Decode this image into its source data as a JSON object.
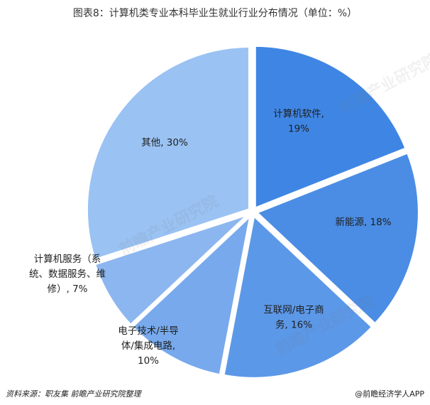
{
  "title": "图表8：计算机类专业本科毕业生就业行业分布情况（单位：%）",
  "source": "资料来源：职友集 前瞻产业研究院整理",
  "brand": "@前瞻经济学人APP",
  "watermark": "前瞻产业研究院",
  "chart_data": {
    "type": "pie",
    "title": "图表8：计算机类专业本科毕业生就业行业分布情况（单位：%）",
    "unit": "%",
    "slices": [
      {
        "label_lines": [
          "计算机软件,",
          "19%"
        ],
        "value": 19,
        "color": "#3f86e4"
      },
      {
        "label_lines": [
          "新能源, 18%"
        ],
        "value": 18,
        "color": "#4b8de4"
      },
      {
        "label_lines": [
          "互联网/电子商",
          "务, 16%"
        ],
        "value": 16,
        "color": "#5c98e8"
      },
      {
        "label_lines": [
          "电子技术/半导",
          "体/集成电路,",
          "10%"
        ],
        "value": 10,
        "color": "#77a9ec"
      },
      {
        "label_lines": [
          "计算机服务（系",
          "统、数据服务、维",
          "修）, 7%"
        ],
        "value": 7,
        "color": "#8cb6ef"
      },
      {
        "label_lines": [
          "其他, 30%"
        ],
        "value": 30,
        "color": "#9ac2f3"
      }
    ]
  }
}
